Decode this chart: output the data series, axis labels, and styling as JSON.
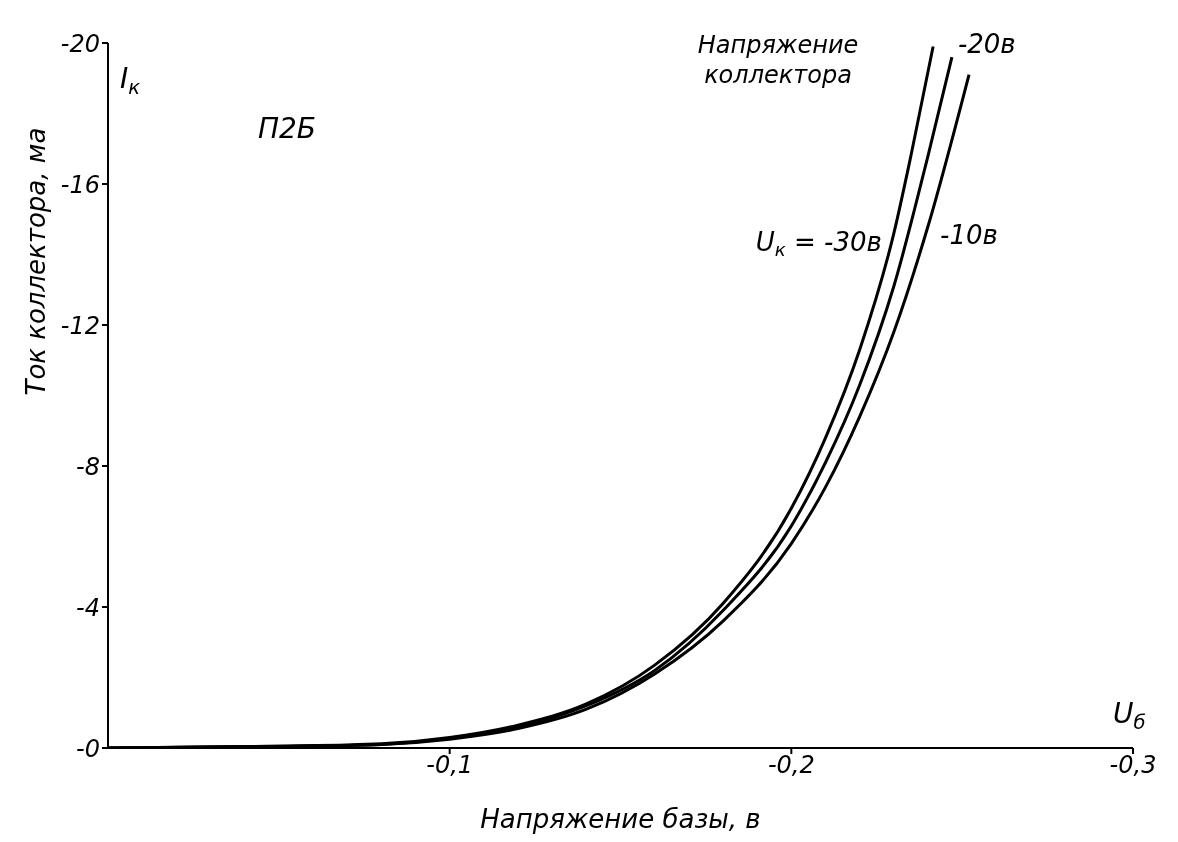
{
  "chart_data": {
    "type": "line",
    "xlabel": "Напряжение базы, в",
    "ylabel": "Ток   коллектора, ма",
    "legend_title": "Напряжение коллектора",
    "annotations": [
      "П2Б",
      "I$_{к}$",
      "U$_{б}$"
    ],
    "xlim": [
      0,
      -0.3
    ],
    "xticks": [
      {
        "value": -0.1,
        "label": "-0,1"
      },
      {
        "value": -0.2,
        "label": "-0,2"
      },
      {
        "value": -0.3,
        "label": "-0,3"
      }
    ],
    "ylim": [
      0,
      -20
    ],
    "yticks": [
      {
        "value": 0,
        "label": "-0"
      },
      -4,
      -8,
      -12,
      -16,
      -20
    ],
    "grid": false,
    "legend": false,
    "marker": "none",
    "line_style": "solid",
    "series": [
      {
        "name": "U$_{к}$ = -30в",
        "color": "#000000",
        "x": [
          0,
          -0.05,
          -0.08,
          -0.1,
          -0.12,
          -0.14,
          -0.16,
          -0.18,
          -0.2,
          -0.21,
          -0.22,
          -0.23,
          -0.235,
          -0.2415
        ],
        "values": [
          0,
          -0.05,
          -0.12,
          -0.3,
          -0.65,
          -1.25,
          -2.35,
          -4.1,
          -6.8,
          -8.8,
          -11.3,
          -14.6,
          -16.8,
          -19.9
        ]
      },
      {
        "name": "-20в",
        "color": "#000000",
        "x": [
          0,
          -0.05,
          -0.08,
          -0.1,
          -0.12,
          -0.14,
          -0.16,
          -0.18,
          -0.2,
          -0.21,
          -0.22,
          -0.23,
          -0.24,
          -0.247
        ],
        "values": [
          0,
          -0.05,
          -0.1,
          -0.28,
          -0.6,
          -1.2,
          -2.2,
          -3.9,
          -6.3,
          -8.1,
          -10.3,
          -13.1,
          -16.8,
          -19.6
        ]
      },
      {
        "name": "-10в",
        "color": "#000000",
        "x": [
          0,
          -0.05,
          -0.08,
          -0.1,
          -0.12,
          -0.14,
          -0.16,
          -0.18,
          -0.2,
          -0.21,
          -0.22,
          -0.23,
          -0.24,
          -0.252
        ],
        "values": [
          0,
          -0.04,
          -0.1,
          -0.25,
          -0.55,
          -1.1,
          -2.1,
          -3.6,
          -5.8,
          -7.4,
          -9.4,
          -11.8,
          -14.8,
          -19.1
        ]
      }
    ]
  }
}
